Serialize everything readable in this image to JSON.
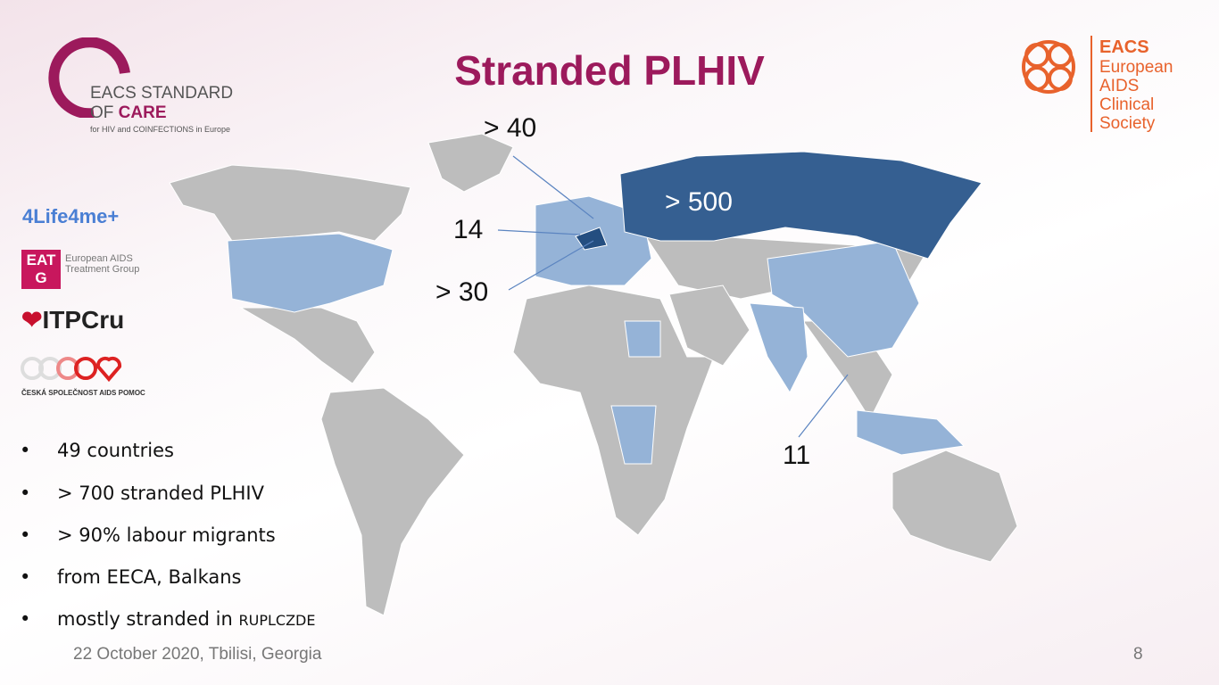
{
  "header": {
    "title": "Stranded PLHIV"
  },
  "logos": {
    "eacs_standard": {
      "line1": "EACS STANDARD",
      "line2_a": "OF",
      "line2_b": "CARE",
      "line3": "for HIV and COINFECTIONS in Europe"
    },
    "eacs": {
      "name": "EACS",
      "line1": "European",
      "line2": "AIDS",
      "line3": "Clinical",
      "line4": "Society"
    },
    "partners": {
      "life4me": "4Life4me+",
      "eatg_mark": "EATG",
      "eatg_name": "European AIDS Treatment Group",
      "itpc": "ITPCru",
      "czech": "ČESKÁ SPOLEČNOST AIDS POMOC"
    }
  },
  "map": {
    "labels": [
      "> 40",
      "14",
      "> 500",
      "> 30",
      "11"
    ]
  },
  "bullets": [
    "49 countries",
    "> 700 stranded PLHIV",
    "> 90% labour migrants",
    "from EECA, Balkans"
  ],
  "last_bullet": {
    "text": "mostly stranded in",
    "countries": "RUPLCZDE"
  },
  "footer": {
    "date": "22 October 2020, Tbilisi, Georgia",
    "page": "8"
  }
}
